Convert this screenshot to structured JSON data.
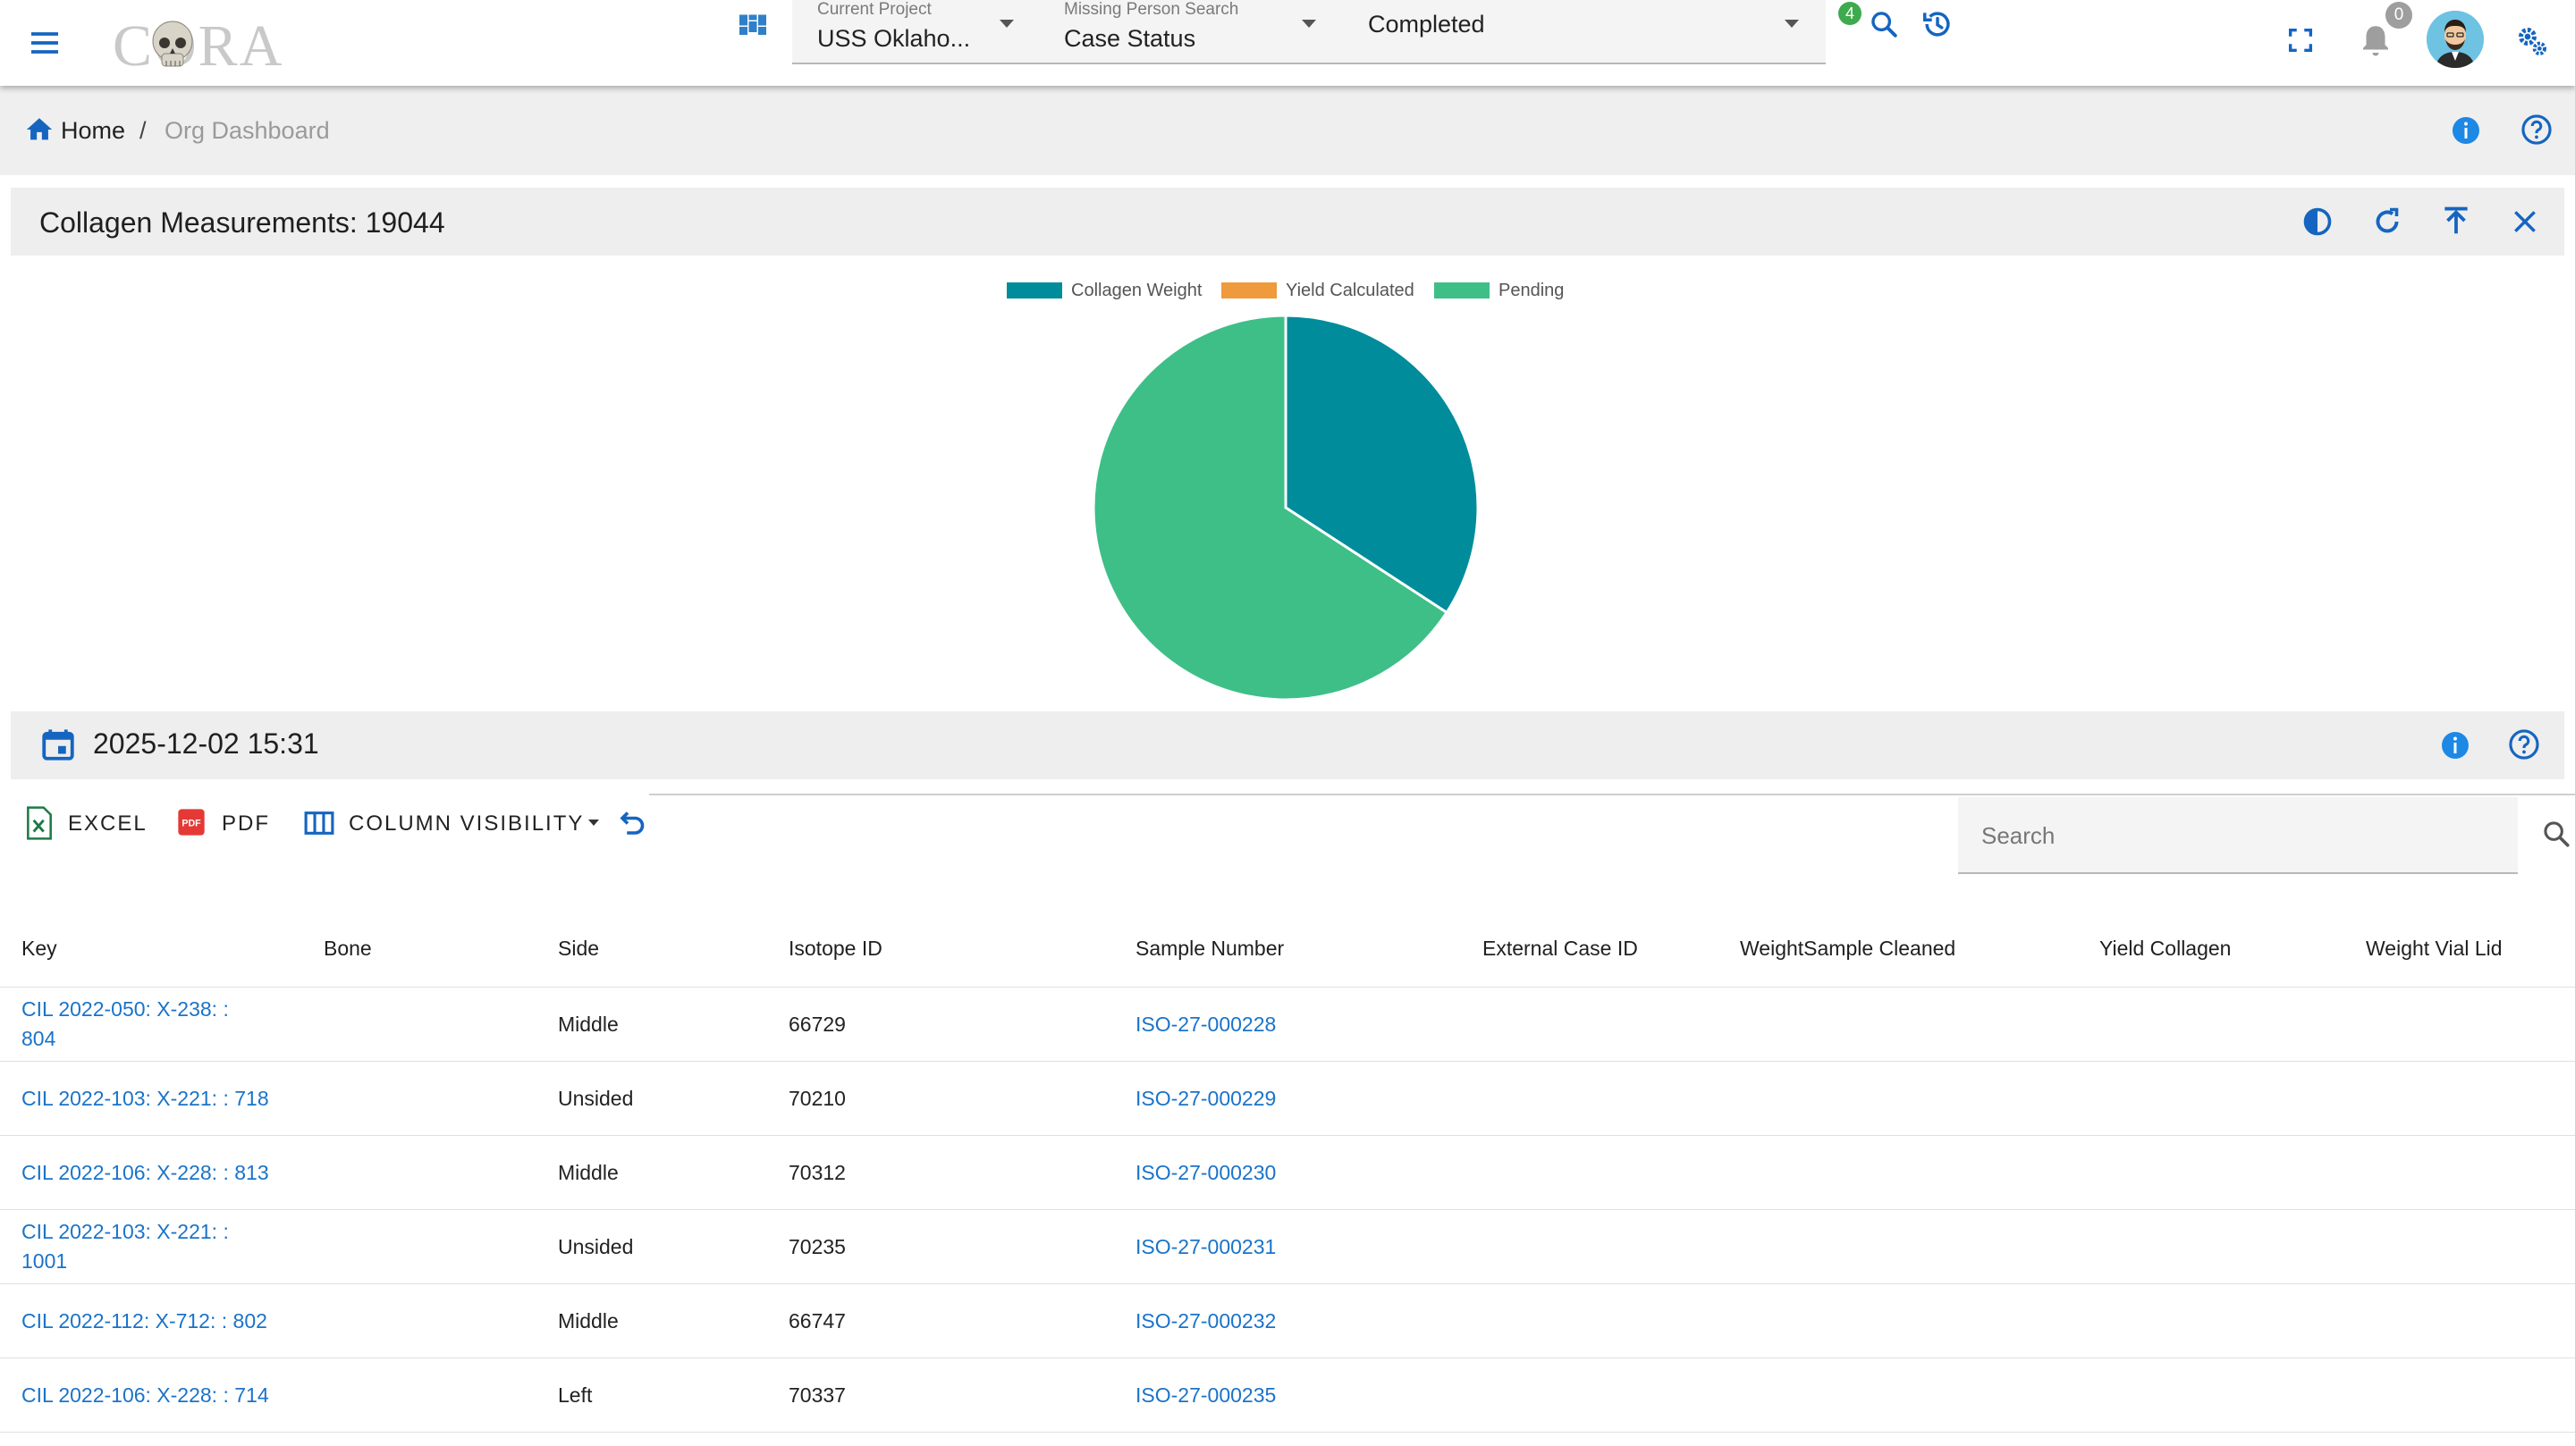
{
  "header": {
    "logo_text": "CORA",
    "current_project": {
      "label": "Current Project",
      "value": "USS Oklaho..."
    },
    "search_type": {
      "label": "Missing Person Search",
      "value": "Case Status"
    },
    "status_filter": {
      "value": "Completed"
    },
    "search_badge": "4",
    "notification_count": "0"
  },
  "breadcrumb": {
    "home": "Home",
    "separator": "/",
    "current": "Org Dashboard"
  },
  "panel": {
    "title": "Collagen Measurements: 19044"
  },
  "chart_data": {
    "type": "pie",
    "legend": [
      {
        "name": "Collagen Weight",
        "color": "#008c9b"
      },
      {
        "name": "Yield Calculated",
        "color": "#ef9a3c"
      },
      {
        "name": "Pending",
        "color": "#3ebf88"
      }
    ],
    "values": [
      6512,
      0,
      12532
    ],
    "legend_placement": "top"
  },
  "date_bar": {
    "datetime": "2025-12-02 15:31"
  },
  "toolbar": {
    "excel_label": "EXCEL",
    "pdf_label": "PDF",
    "column_visibility_label": "COLUMN VISIBILITY",
    "search_placeholder": "Search"
  },
  "table": {
    "columns": [
      "Key",
      "Bone",
      "Side",
      "Isotope ID",
      "Sample Number",
      "External Case ID",
      "WeightSample Cleaned",
      "Yield Collagen",
      "Weight Vial Lid"
    ],
    "rows": [
      {
        "key": "CIL 2022-050: X-238: : 804",
        "bone": "",
        "side": "Middle",
        "isotope_id": "66729",
        "sample_number": "ISO-27-000228",
        "external_case_id": "",
        "weight_sample_cleaned": "",
        "yield_collagen": "",
        "weight_vial_lid": ""
      },
      {
        "key": "CIL 2022-103: X-221: : 718",
        "bone": "",
        "side": "Unsided",
        "isotope_id": "70210",
        "sample_number": "ISO-27-000229",
        "external_case_id": "",
        "weight_sample_cleaned": "",
        "yield_collagen": "",
        "weight_vial_lid": ""
      },
      {
        "key": "CIL 2022-106: X-228: : 813",
        "bone": "",
        "side": "Middle",
        "isotope_id": "70312",
        "sample_number": "ISO-27-000230",
        "external_case_id": "",
        "weight_sample_cleaned": "",
        "yield_collagen": "",
        "weight_vial_lid": ""
      },
      {
        "key": "CIL 2022-103: X-221: : 1001",
        "bone": "",
        "side": "Unsided",
        "isotope_id": "70235",
        "sample_number": "ISO-27-000231",
        "external_case_id": "",
        "weight_sample_cleaned": "",
        "yield_collagen": "",
        "weight_vial_lid": ""
      },
      {
        "key": "CIL 2022-112: X-712: : 802",
        "bone": "",
        "side": "Middle",
        "isotope_id": "66747",
        "sample_number": "ISO-27-000232",
        "external_case_id": "",
        "weight_sample_cleaned": "",
        "yield_collagen": "",
        "weight_vial_lid": ""
      },
      {
        "key": "CIL 2022-106: X-228: : 714",
        "bone": "",
        "side": "Left",
        "isotope_id": "70337",
        "sample_number": "ISO-27-000235",
        "external_case_id": "",
        "weight_sample_cleaned": "",
        "yield_collagen": "",
        "weight_vial_lid": ""
      }
    ]
  },
  "colors": {
    "accent": "#1565c0",
    "link": "#1a73c9",
    "info": "#1e88e5"
  }
}
